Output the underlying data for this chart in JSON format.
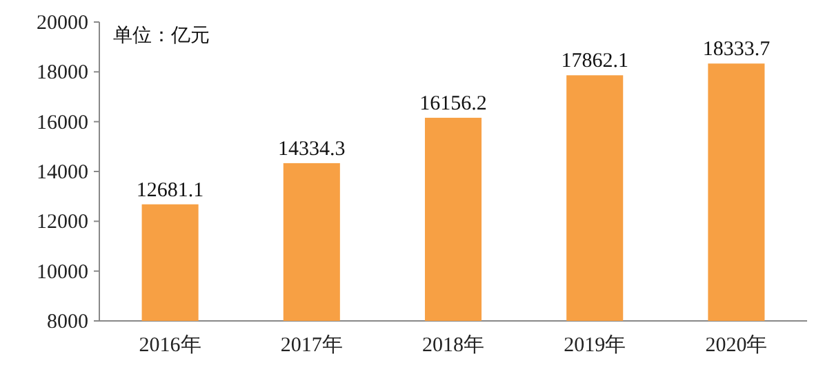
{
  "chart_data": {
    "type": "bar",
    "categories": [
      "2016年",
      "2017年",
      "2018年",
      "2019年",
      "2020年"
    ],
    "values": [
      12681.1,
      14334.3,
      16156.2,
      17862.1,
      18333.7
    ],
    "color": "#f7a044",
    "ylim": [
      8000,
      20000
    ],
    "yticks": [
      8000,
      10000,
      12000,
      14000,
      16000,
      18000,
      20000
    ],
    "data_labels": true,
    "annotations": [
      "单位：亿元"
    ]
  }
}
